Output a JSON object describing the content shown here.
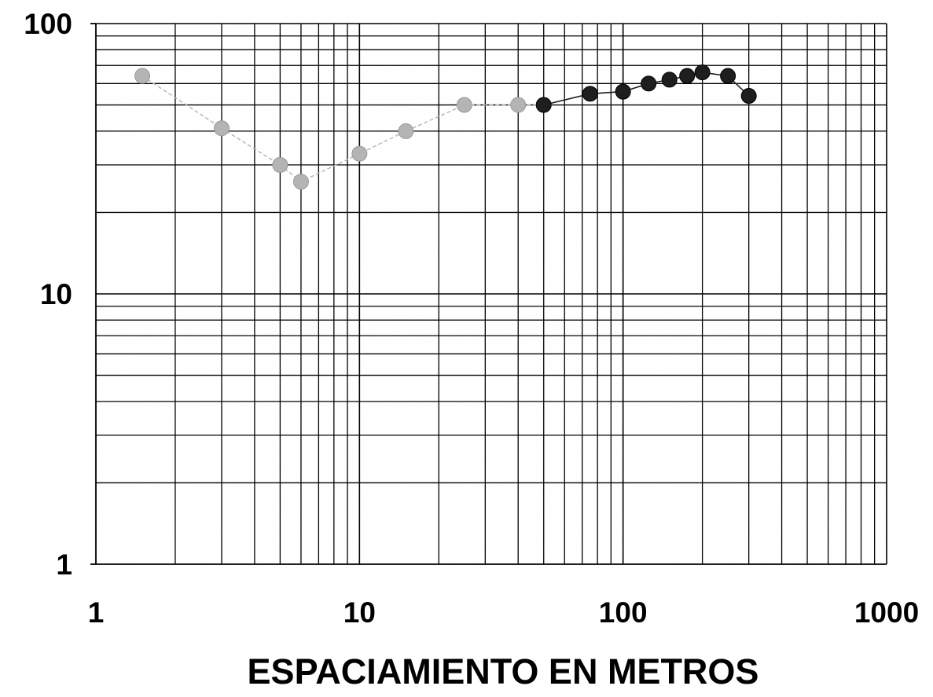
{
  "chart_data": {
    "type": "scatter",
    "title": "",
    "xlabel": "ESPACIAMIENTO EN METROS",
    "ylabel": "",
    "x_scale": "log",
    "y_scale": "log",
    "xlim": [
      1,
      1000
    ],
    "ylim": [
      1,
      100
    ],
    "grid": true,
    "x_tick_labels": [
      "1",
      "10",
      "100",
      "1000"
    ],
    "y_tick_labels": [
      "1",
      "10",
      "100"
    ],
    "series": [
      {
        "color": "#b4b4b4",
        "line_style": "dashed",
        "x": [
          1.5,
          3,
          5,
          6,
          10,
          15,
          25,
          40,
          50
        ],
        "y": [
          64,
          41,
          30,
          26,
          33,
          40,
          50,
          50,
          50
        ]
      },
      {
        "color": "#1e1e1e",
        "line_style": "solid",
        "x": [
          50,
          75,
          100,
          125,
          150,
          175,
          200,
          250,
          300
        ],
        "y": [
          50,
          55,
          56,
          60,
          62,
          64,
          66,
          64,
          54
        ]
      }
    ]
  }
}
